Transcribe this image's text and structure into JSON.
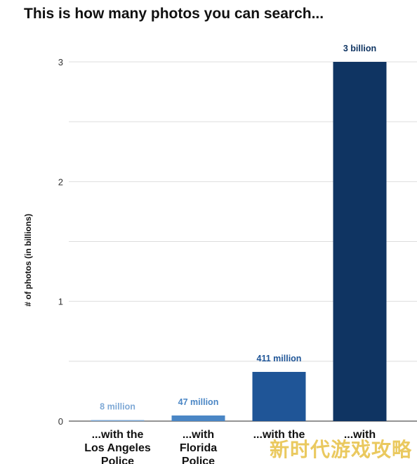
{
  "chart_data": {
    "type": "bar",
    "title": "This is how many photos you can search...",
    "ylabel": "# of photos (in billions)",
    "xlabel": "",
    "ylim": [
      0,
      3
    ],
    "yticks": [
      0,
      1,
      2,
      3
    ],
    "grid": true,
    "legend": "none",
    "categories": [
      [
        "...with the",
        "Los Angeles",
        "Police"
      ],
      [
        "...with",
        "Florida",
        "Police"
      ],
      [
        "...with the",
        "",
        ""
      ],
      [
        "...with",
        "",
        ""
      ]
    ],
    "values": [
      0.008,
      0.047,
      0.411,
      3
    ],
    "data_labels": [
      "8 million",
      "47 million",
      "411 million",
      "3 billion"
    ],
    "colors": [
      "#7fa9d6",
      "#4a86c5",
      "#1f5597",
      "#0f3462"
    ]
  },
  "watermark": "新时代游戏攻略"
}
